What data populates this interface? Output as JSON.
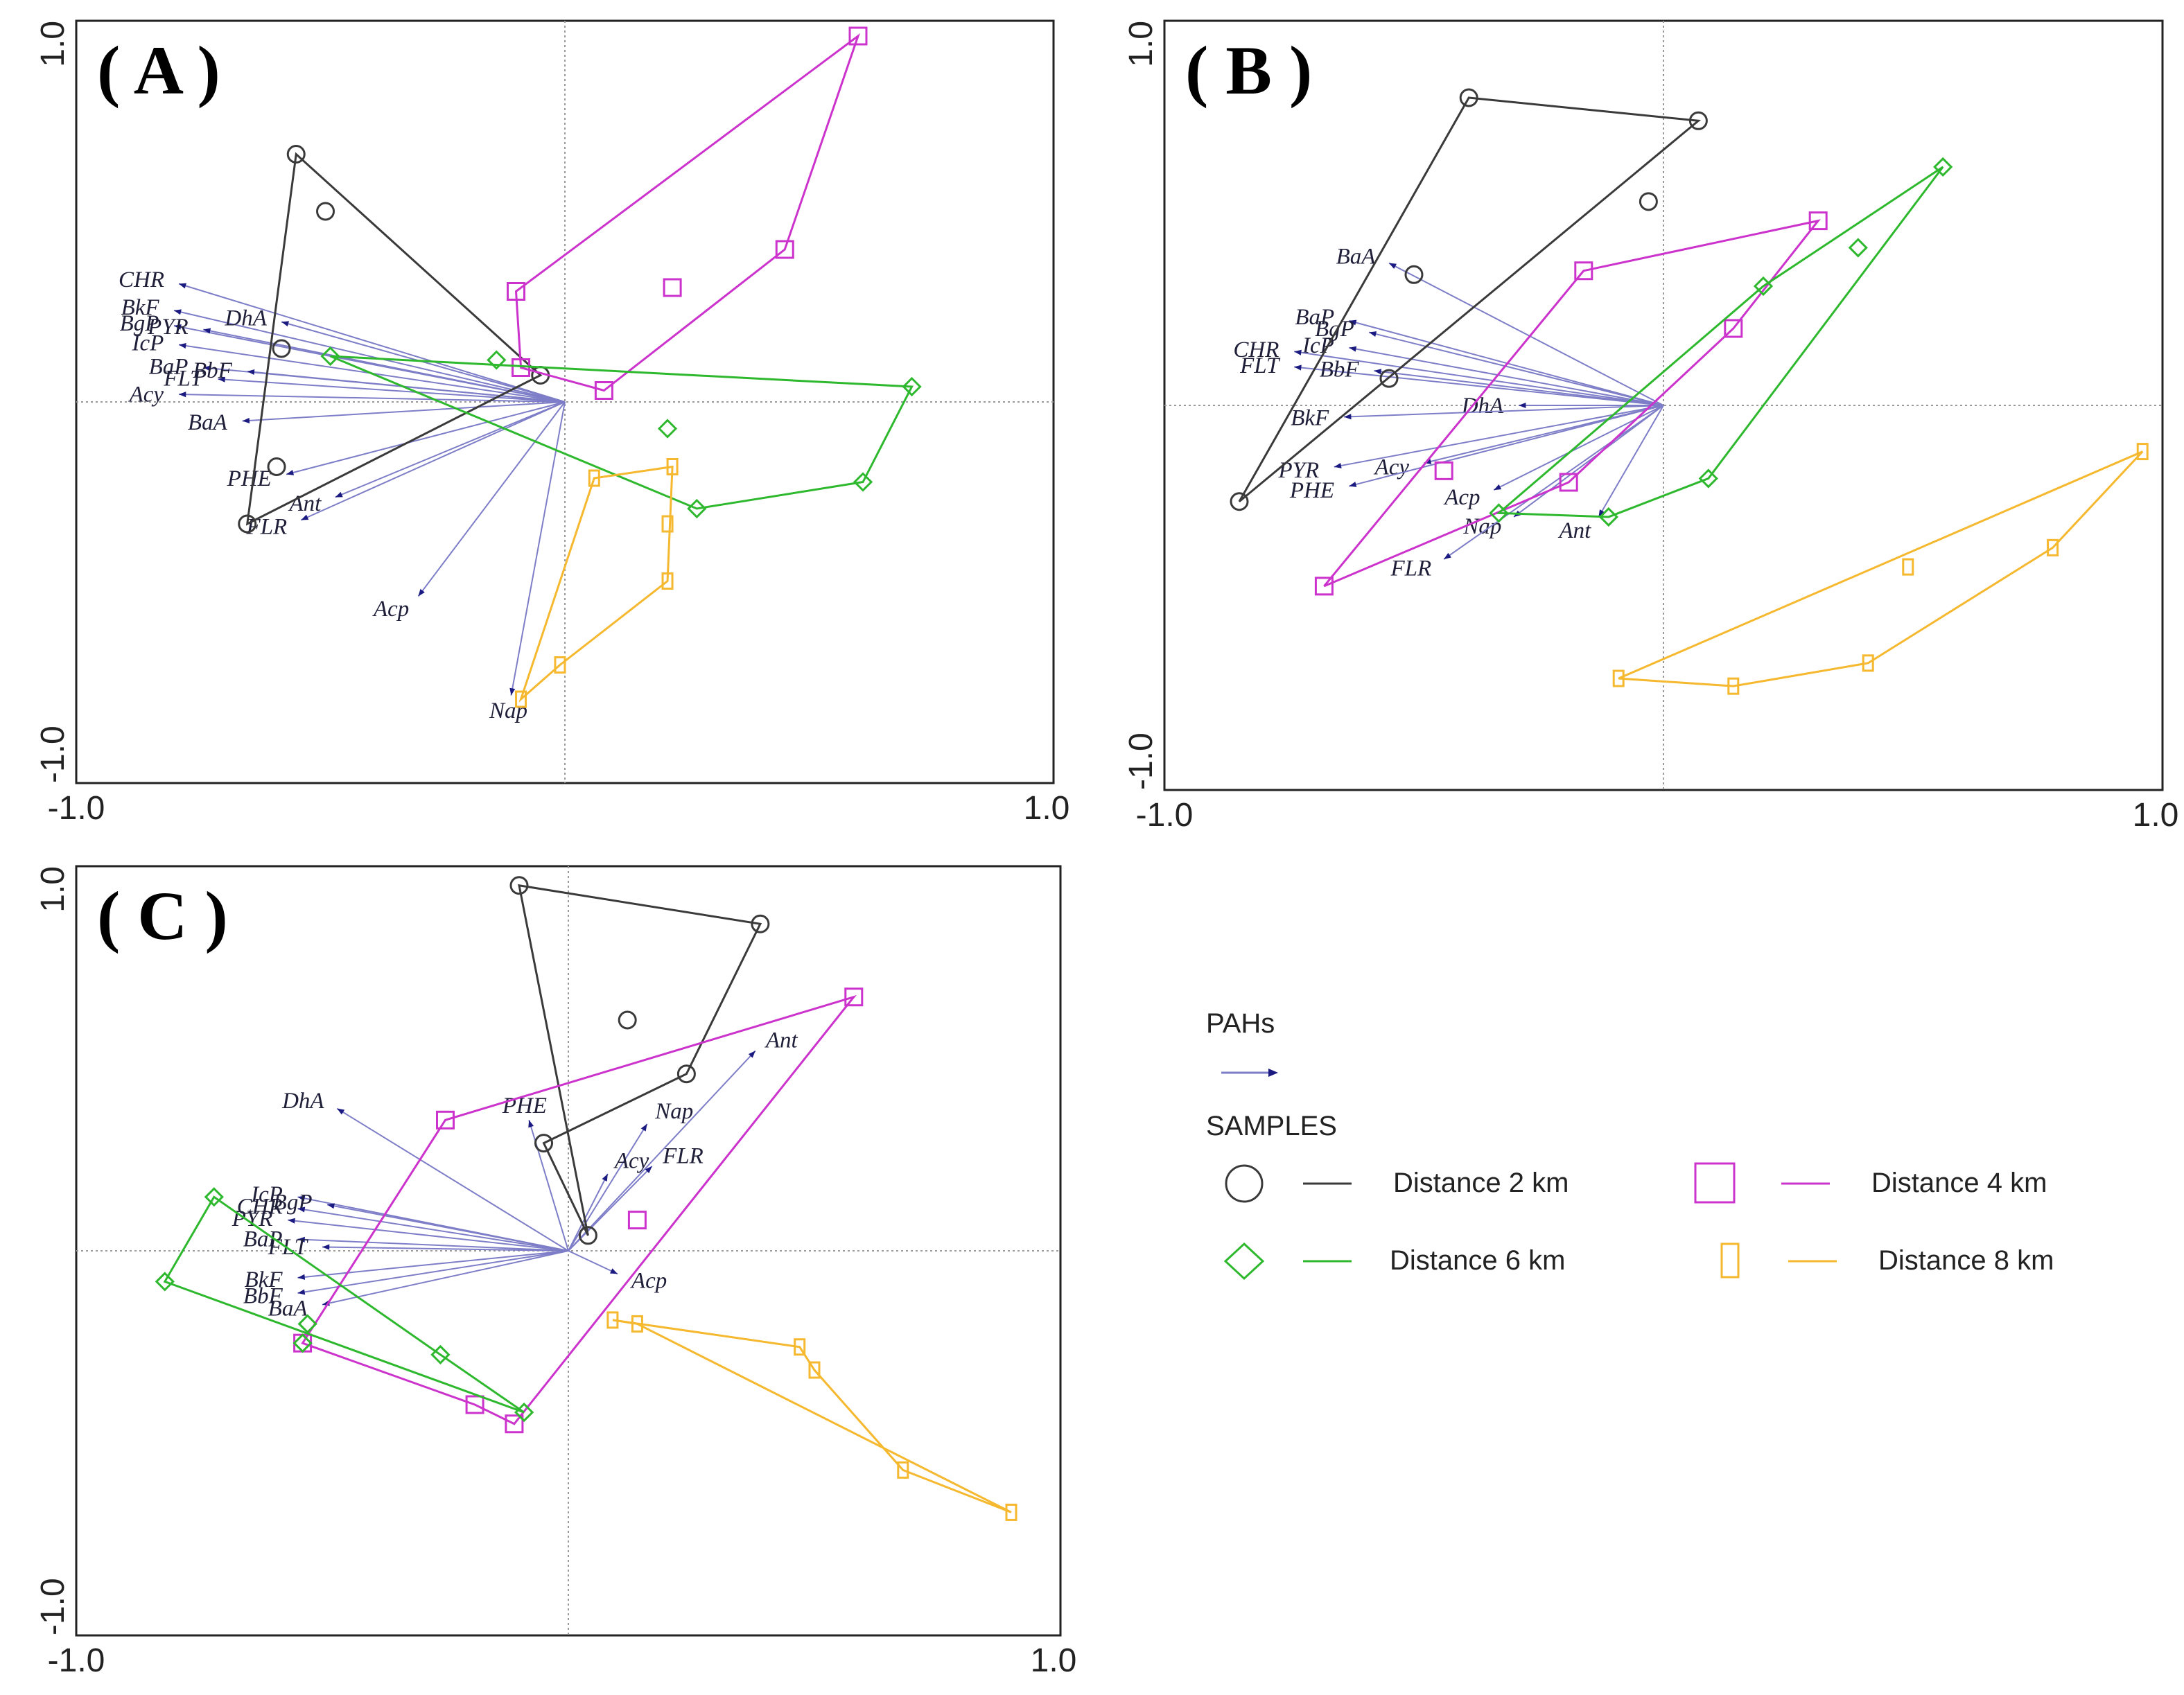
{
  "figure": {
    "axis_min_label": "-1.0",
    "axis_max_label": "1.0"
  },
  "colors": {
    "d2": "#3a3a3a",
    "d4": "#cc33cc",
    "d6": "#2eb82e",
    "d8": "#f5b82e",
    "vector": "#7d7dc8",
    "vector_head": "#1a1a80"
  },
  "legend": {
    "pahs_title": "PAHs",
    "samples_title": "SAMPLES",
    "entries": [
      {
        "key": "d2",
        "marker": "circle",
        "label": "Distance 2 km"
      },
      {
        "key": "d4",
        "marker": "square",
        "label": "Distance 4 km"
      },
      {
        "key": "d6",
        "marker": "diamond",
        "label": "Distance 6 km"
      },
      {
        "key": "d8",
        "marker": "rect",
        "label": "Distance 8 km"
      }
    ]
  },
  "chart_data": [
    {
      "type": "scatter",
      "title": "( A )",
      "xlim": [
        -1,
        1
      ],
      "ylim": [
        -1,
        1
      ],
      "vectors": [
        {
          "name": "CHR",
          "x": -0.79,
          "y": 0.31
        },
        {
          "name": "BkF",
          "x": -0.8,
          "y": 0.24
        },
        {
          "name": "BgP",
          "x": -0.8,
          "y": 0.2
        },
        {
          "name": "PYR",
          "x": -0.74,
          "y": 0.19
        },
        {
          "name": "DhA",
          "x": -0.58,
          "y": 0.21
        },
        {
          "name": "IcP",
          "x": -0.79,
          "y": 0.15
        },
        {
          "name": "BaP",
          "x": -0.74,
          "y": 0.09
        },
        {
          "name": "BbF",
          "x": -0.65,
          "y": 0.08
        },
        {
          "name": "FLT",
          "x": -0.71,
          "y": 0.06
        },
        {
          "name": "Acy",
          "x": -0.79,
          "y": 0.02
        },
        {
          "name": "BaA",
          "x": -0.66,
          "y": -0.05
        },
        {
          "name": "PHE",
          "x": -0.57,
          "y": -0.19
        },
        {
          "name": "Ant",
          "x": -0.47,
          "y": -0.25
        },
        {
          "name": "FLR",
          "x": -0.54,
          "y": -0.31
        },
        {
          "name": "Acp",
          "x": -0.3,
          "y": -0.51
        },
        {
          "name": "Nap",
          "x": -0.11,
          "y": -0.77
        }
      ],
      "groups": [
        {
          "key": "d2",
          "hull": [
            [
              -0.55,
              0.65
            ],
            [
              -0.65,
              -0.32
            ],
            [
              -0.05,
              0.07
            ]
          ],
          "inner": [
            [
              -0.49,
              0.5
            ],
            [
              -0.58,
              0.14
            ],
            [
              -0.59,
              -0.17
            ]
          ]
        },
        {
          "key": "d4",
          "hull": [
            [
              0.6,
              0.96
            ],
            [
              0.45,
              0.4
            ],
            [
              0.08,
              0.03
            ],
            [
              -0.09,
              0.09
            ],
            [
              -0.1,
              0.29
            ]
          ],
          "inner": [
            [
              0.22,
              0.3
            ]
          ]
        },
        {
          "key": "d6",
          "hull": [
            [
              -0.48,
              0.12
            ],
            [
              0.71,
              0.04
            ],
            [
              0.61,
              -0.21
            ],
            [
              0.27,
              -0.28
            ]
          ],
          "inner": [
            [
              -0.14,
              0.11
            ],
            [
              0.21,
              -0.07
            ]
          ]
        },
        {
          "key": "d8",
          "hull": [
            [
              0.22,
              -0.17
            ],
            [
              0.21,
              -0.47
            ],
            [
              -0.01,
              -0.69
            ],
            [
              -0.09,
              -0.78
            ],
            [
              0.06,
              -0.2
            ]
          ],
          "inner": [
            [
              0.21,
              -0.32
            ]
          ]
        }
      ]
    },
    {
      "type": "scatter",
      "title": "( B )",
      "xlim": [
        -1,
        1
      ],
      "ylim": [
        -1,
        1
      ],
      "vectors": [
        {
          "name": "BaA",
          "x": -0.55,
          "y": 0.37
        },
        {
          "name": "BaP",
          "x": -0.63,
          "y": 0.22
        },
        {
          "name": "BgP",
          "x": -0.59,
          "y": 0.19
        },
        {
          "name": "IcP",
          "x": -0.63,
          "y": 0.15
        },
        {
          "name": "CHR",
          "x": -0.74,
          "y": 0.14
        },
        {
          "name": "FLT",
          "x": -0.74,
          "y": 0.1
        },
        {
          "name": "BbF",
          "x": -0.58,
          "y": 0.09
        },
        {
          "name": "DhA",
          "x": -0.29,
          "y": 0.0
        },
        {
          "name": "BkF",
          "x": -0.64,
          "y": -0.03
        },
        {
          "name": "Acy",
          "x": -0.48,
          "y": -0.15
        },
        {
          "name": "PYR",
          "x": -0.66,
          "y": -0.16
        },
        {
          "name": "Acp",
          "x": -0.34,
          "y": -0.22
        },
        {
          "name": "PHE",
          "x": -0.63,
          "y": -0.21
        },
        {
          "name": "Nap",
          "x": -0.3,
          "y": -0.29
        },
        {
          "name": "Ant",
          "x": -0.13,
          "y": -0.29
        },
        {
          "name": "FLR",
          "x": -0.44,
          "y": -0.4
        }
      ],
      "groups": [
        {
          "key": "d2",
          "hull": [
            [
              -0.39,
              0.8
            ],
            [
              0.07,
              0.74
            ],
            [
              -0.85,
              -0.25
            ]
          ],
          "inner": [
            [
              -0.03,
              0.53
            ],
            [
              -0.5,
              0.34
            ],
            [
              -0.55,
              0.07
            ]
          ]
        },
        {
          "key": "d4",
          "hull": [
            [
              0.31,
              0.48
            ],
            [
              -0.16,
              0.35
            ],
            [
              -0.68,
              -0.47
            ],
            [
              -0.19,
              -0.2
            ],
            [
              0.14,
              0.2
            ]
          ],
          "inner": [
            [
              -0.44,
              -0.17
            ]
          ]
        },
        {
          "key": "d6",
          "hull": [
            [
              0.56,
              0.62
            ],
            [
              0.09,
              -0.19
            ],
            [
              -0.11,
              -0.29
            ],
            [
              -0.33,
              -0.28
            ],
            [
              0.2,
              0.31
            ]
          ],
          "inner": [
            [
              0.39,
              0.41
            ]
          ]
        },
        {
          "key": "d8",
          "hull": [
            [
              0.96,
              -0.12
            ],
            [
              0.78,
              -0.37
            ],
            [
              0.41,
              -0.67
            ],
            [
              0.14,
              -0.73
            ],
            [
              -0.09,
              -0.71
            ]
          ],
          "inner": [
            [
              0.49,
              -0.42
            ]
          ]
        }
      ]
    },
    {
      "type": "scatter",
      "title": "( C )",
      "xlim": [
        -1,
        1
      ],
      "ylim": [
        -1,
        1
      ],
      "vectors": [
        {
          "name": "DhA",
          "x": -0.47,
          "y": 0.37
        },
        {
          "name": "PHE",
          "x": -0.08,
          "y": 0.34
        },
        {
          "name": "Nap",
          "x": 0.16,
          "y": 0.33
        },
        {
          "name": "Ant",
          "x": 0.38,
          "y": 0.52
        },
        {
          "name": "Acy",
          "x": 0.08,
          "y": 0.2
        },
        {
          "name": "FLR",
          "x": 0.17,
          "y": 0.22
        },
        {
          "name": "IcP",
          "x": -0.55,
          "y": 0.14
        },
        {
          "name": "BgP",
          "x": -0.49,
          "y": 0.12
        },
        {
          "name": "CHR",
          "x": -0.55,
          "y": 0.11
        },
        {
          "name": "PYR",
          "x": -0.57,
          "y": 0.08
        },
        {
          "name": "BaP",
          "x": -0.55,
          "y": 0.03
        },
        {
          "name": "FLT",
          "x": -0.5,
          "y": 0.01
        },
        {
          "name": "Acp",
          "x": 0.1,
          "y": -0.06
        },
        {
          "name": "BkF",
          "x": -0.55,
          "y": -0.07
        },
        {
          "name": "BbF",
          "x": -0.55,
          "y": -0.11
        },
        {
          "name": "BaA",
          "x": -0.5,
          "y": -0.14
        }
      ],
      "groups": [
        {
          "key": "d2",
          "hull": [
            [
              -0.1,
              0.95
            ],
            [
              0.39,
              0.85
            ],
            [
              0.24,
              0.46
            ],
            [
              -0.05,
              0.28
            ],
            [
              0.04,
              0.04
            ]
          ],
          "inner": [
            [
              0.12,
              0.6
            ]
          ]
        },
        {
          "key": "d4",
          "hull": [
            [
              0.58,
              0.66
            ],
            [
              -0.11,
              -0.45
            ],
            [
              -0.19,
              -0.4
            ],
            [
              -0.54,
              -0.24
            ],
            [
              -0.25,
              0.34
            ]
          ],
          "inner": [
            [
              0.14,
              0.08
            ]
          ]
        },
        {
          "key": "d6",
          "hull": [
            [
              -0.72,
              0.14
            ],
            [
              -0.26,
              -0.27
            ],
            [
              -0.09,
              -0.42
            ],
            [
              -0.82,
              -0.08
            ]
          ],
          "inner": [
            [
              -0.53,
              -0.19
            ],
            [
              -0.54,
              -0.24
            ]
          ]
        },
        {
          "key": "d8",
          "hull": [
            [
              0.09,
              -0.18
            ],
            [
              0.47,
              -0.25
            ],
            [
              0.5,
              -0.31
            ],
            [
              0.68,
              -0.57
            ],
            [
              0.9,
              -0.68
            ],
            [
              0.14,
              -0.19
            ]
          ],
          "inner": []
        }
      ]
    }
  ]
}
